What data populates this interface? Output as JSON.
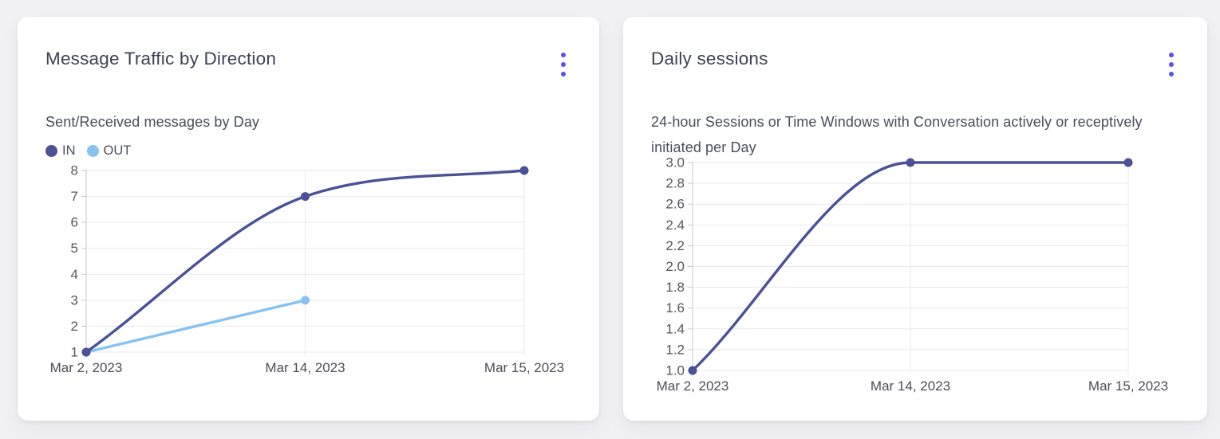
{
  "page": {
    "background": "#f1f1f4"
  },
  "colors": {
    "accent": "#5952f0",
    "grid": "#e9e9ed",
    "axis": "#c7c8cf",
    "tick_text": "#55575f",
    "xlabel_text": "#4c4e57",
    "series_in": "#4b5196",
    "series_out": "#86c3f1"
  },
  "cards": [
    {
      "title": "Message Traffic by Direction",
      "subtitle": "Sent/Received messages by Day",
      "menu_icon": "kebab-menu-icon",
      "legend": [
        {
          "label": "IN",
          "color": "#4b5196"
        },
        {
          "label": "OUT",
          "color": "#86c3f1"
        }
      ],
      "chart_data": {
        "type": "line",
        "title": "Message Traffic by Direction",
        "xlabel": "",
        "ylabel": "",
        "categories": [
          "Mar 2, 2023",
          "Mar 14, 2023",
          "Mar 15, 2023"
        ],
        "series": [
          {
            "name": "IN",
            "color": "#4b5196",
            "values": [
              1,
              7,
              8
            ]
          },
          {
            "name": "OUT",
            "color": "#86c3f1",
            "values": [
              1,
              3,
              null
            ]
          }
        ],
        "ylim": [
          1,
          8
        ],
        "yticks": [
          1,
          2,
          3,
          4,
          5,
          6,
          7,
          8
        ],
        "ytick_labels": [
          "1",
          "2",
          "3",
          "4",
          "5",
          "6",
          "7",
          "8"
        ],
        "grid": true,
        "curve": "monotone",
        "legend_position": "top-left"
      }
    },
    {
      "title": "Daily sessions",
      "subtitle": "24-hour Sessions or Time Windows with Conversation actively or receptively initiated per Day",
      "menu_icon": "kebab-menu-icon",
      "legend": [],
      "chart_data": {
        "type": "line",
        "title": "Daily sessions",
        "xlabel": "",
        "ylabel": "",
        "categories": [
          "Mar 2, 2023",
          "Mar 14, 2023",
          "Mar 15, 2023"
        ],
        "series": [
          {
            "name": "Sessions",
            "color": "#4b5196",
            "values": [
              1,
              3,
              3
            ]
          }
        ],
        "ylim": [
          1,
          3
        ],
        "yticks": [
          1,
          1.2,
          1.4,
          1.6,
          1.8,
          2,
          2.2,
          2.4,
          2.6,
          2.8,
          3
        ],
        "ytick_labels": [
          "1.0",
          "1.2",
          "1.4",
          "1.6",
          "1.8",
          "2.0",
          "2.2",
          "2.4",
          "2.6",
          "2.8",
          "3.0"
        ],
        "grid": true,
        "curve": "monotone",
        "legend_position": "none"
      }
    }
  ]
}
